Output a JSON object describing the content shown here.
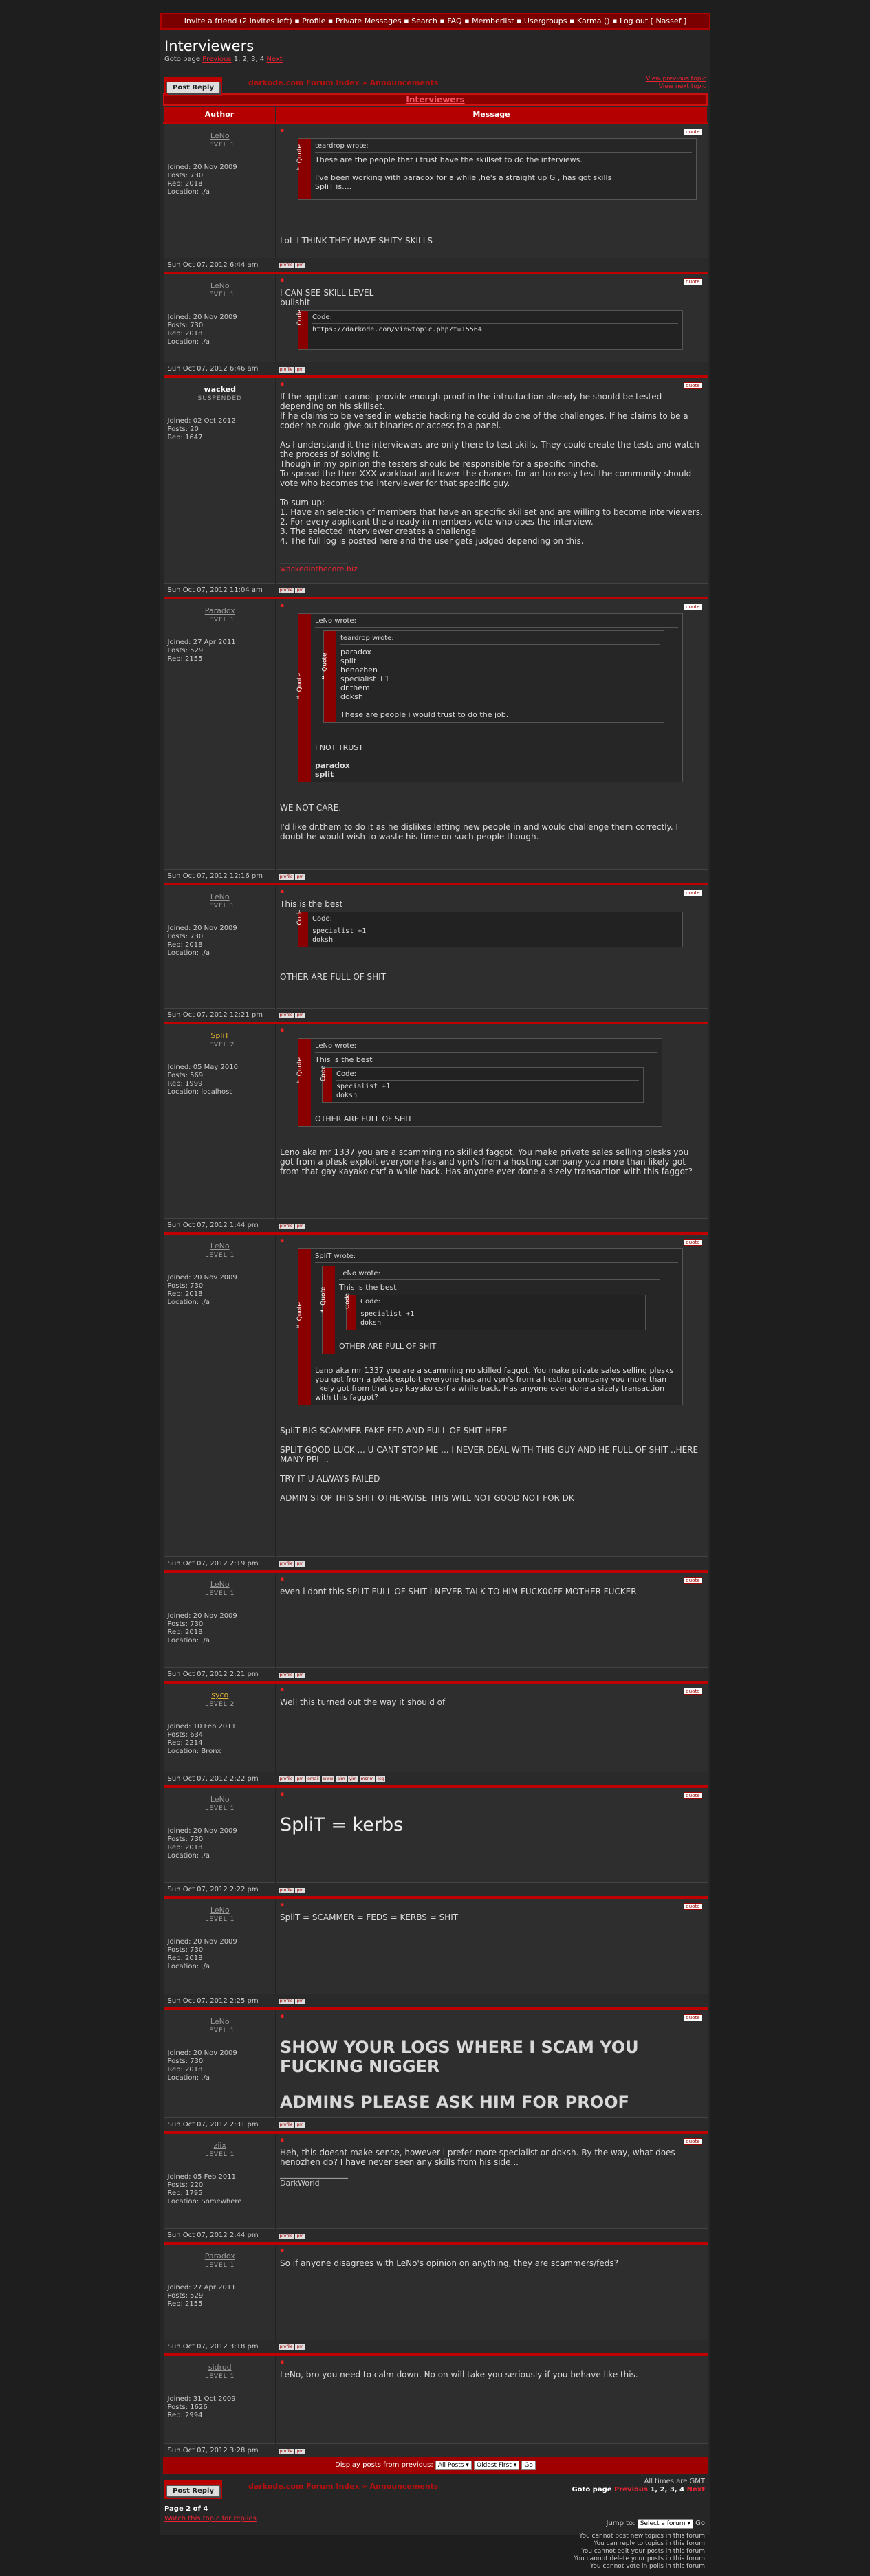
{
  "topbar": {
    "text": "Invite a friend (2 invites left) ▪ Profile ▪ Private Messages ▪ Search ▪ FAQ ▪ Memberlist ▪ Usergroups ▪ Karma () ▪ Log out [ Nassef ]"
  },
  "title": "Interviewers",
  "goto": {
    "label": "Goto page",
    "prev": "Previous",
    "pages": "1, 2, 3, 4",
    "next": "Next"
  },
  "nav": {
    "post_reply": "Post Reply",
    "crumb_index": "darkode.com Forum Index",
    "crumb_sep": "»",
    "crumb_forum": "Announcements",
    "view_prev": "View previous topic",
    "view_next": "View next topic"
  },
  "topic_bar": "Interviewers",
  "headers": {
    "author": "Author",
    "message": "Message"
  },
  "posts": [
    {
      "user": "LeNo",
      "cls": "gray",
      "level": "LEVEL 1",
      "joined": "Joined: 20 Nov 2009",
      "posts": "Posts: 730",
      "rep": "Rep: 2018",
      "location": "Location: ./a",
      "date": "Sun Oct 07, 2012 6:44 am",
      "quote_who": "teardrop wrote:",
      "quote_text": "These are the people that i trust have the skillset to do the interviews.",
      "quote_text2": "I've been working with paradox for a while ,he's a straight up G , has got skills",
      "quote_text3": "SpliT is....",
      "text": "LoL I THINK THEY HAVE SHITY SKILLS"
    },
    {
      "user": "LeNo",
      "cls": "gray",
      "level": "LEVEL 1",
      "joined": "Joined: 20 Nov 2009",
      "posts": "Posts: 730",
      "rep": "Rep: 2018",
      "location": "Location: ./a",
      "date": "Sun Oct 07, 2012 6:46 am",
      "line1": "I CAN SEE SKILL LEVEL",
      "line2": "bullshit",
      "code_head": "Code:",
      "code": "https://darkode.com/viewtopic.php?t=15564"
    },
    {
      "user": "wacked",
      "cls": "white",
      "level": "SUSPENDED",
      "joined": "Joined: 02 Oct 2012",
      "posts": "Posts: 20",
      "rep": "Rep: 1647",
      "location": "",
      "date": "Sun Oct 07, 2012 11:04 am",
      "p1": "If the applicant cannot provide enough proof in the intruduction already he should be tested - depending on his skillset.",
      "p2": "If he claims to be versed in webstie hacking he could do one of the challenges. If he claims to be a coder he could give out binaries or access to a panel.",
      "p3": "As I understand it the interviewers are only there to test skills. They could create the tests and watch the process of solving it.",
      "p4": "Though in my opinion the testers should be responsible for a specific ninche.",
      "p5": "To spread the then XXX workload and lower the chances for an too easy test the community should vote who becomes the interviewer for that specific guy.",
      "p6": "To sum up:",
      "p7": "1. Have an selection of members that have an specific skillset and are willing to become interviewers.",
      "p8": "2. For every applicant the already in members vote who does the interview.",
      "p9": "3. The selected interviewer creates a challenge",
      "p10": "4. The full log is posted here and the user gets judged depending on this.",
      "sig": "wackedinthecore.biz"
    },
    {
      "user": "Paradox",
      "cls": "gray",
      "level": "LEVEL 1",
      "joined": "Joined: 27 Apr 2011",
      "posts": "Posts: 529",
      "rep": "Rep: 2155",
      "location": "",
      "date": "Sun Oct 07, 2012 12:16 pm",
      "outer_who": "LeNo wrote:",
      "inner_who": "teardrop wrote:",
      "names": [
        "paradox",
        "split",
        "henozhen",
        "specialist +1",
        "dr.them",
        "doksh"
      ],
      "inner_text": "These are people i would trust to do the job.",
      "trust": "I NOT TRUST",
      "t1": "paradox",
      "t2": "split",
      "text1": "WE NOT CARE.",
      "text2": "I'd like dr.them to do it as he dislikes letting new people in and would challenge them correctly. I doubt he would wish to waste his time on such people though."
    },
    {
      "user": "LeNo",
      "cls": "gray",
      "level": "LEVEL 1",
      "joined": "Joined: 20 Nov 2009",
      "posts": "Posts: 730",
      "rep": "Rep: 2018",
      "location": "Location: ./a",
      "date": "Sun Oct 07, 2012 12:21 pm",
      "line1": "This is the best",
      "code_head": "Code:",
      "code1": "specialist +1",
      "code2": "doksh",
      "text": "OTHER ARE FULL OF SHIT"
    },
    {
      "user": "SpliT",
      "cls": "gold",
      "level": "LEVEL 2",
      "joined": "Joined: 05 May 2010",
      "posts": "Posts: 569",
      "rep": "Rep: 1999",
      "location": "Location: localhost",
      "date": "Sun Oct 07, 2012 1:44 pm",
      "quote_who": "LeNo wrote:",
      "qline": "This is the best",
      "code_head": "Code:",
      "code1": "specialist +1",
      "code2": "doksh",
      "qtail": "OTHER ARE FULL OF SHIT",
      "text": "Leno aka mr 1337 you are a scamming no skilled faggot. You make private sales selling plesks you got from a plesk exploit everyone has and vpn's from a hosting company you more than likely got from that gay kayako csrf a while back. Has anyone ever done a sizely transaction with this faggot?"
    },
    {
      "user": "LeNo",
      "cls": "gray",
      "level": "LEVEL 1",
      "joined": "Joined: 20 Nov 2009",
      "posts": "Posts: 730",
      "rep": "Rep: 2018",
      "location": "Location: ./a",
      "date": "Sun Oct 07, 2012 2:19 pm",
      "outer_who": "SpliT wrote:",
      "inner_who": "LeNo wrote:",
      "qline": "This is the best",
      "code_head": "Code:",
      "code1": "specialist +1",
      "code2": "doksh",
      "qtail": "OTHER ARE FULL OF SHIT",
      "qtext": "Leno aka mr 1337 you are a scamming no skilled faggot. You make private sales selling plesks you got from a plesk exploit everyone has and vpn's from a hosting company you more than likely got from that gay kayako csrf a while back. Has anyone ever done a sizely transaction with this faggot?",
      "l1": "SpliT BIG SCAMMER FAKE FED AND FULL OF SHIT HERE",
      "l2": "SPLIT GOOD LUCK ... U CANT STOP ME ... I NEVER DEAL WITH THIS GUY AND HE FULL OF SHIT ..HERE MANY PPL ..",
      "l3": "TRY IT U ALWAYS FAILED",
      "l4": "ADMIN STOP THIS SHIT OTHERWISE THIS WILL NOT GOOD NOT FOR DK"
    },
    {
      "user": "LeNo",
      "cls": "gray",
      "level": "LEVEL 1",
      "joined": "Joined: 20 Nov 2009",
      "posts": "Posts: 730",
      "rep": "Rep: 2018",
      "location": "Location: ./a",
      "date": "Sun Oct 07, 2012 2:21 pm",
      "text": "even i dont this SPLIT FULL OF SHIT I NEVER TALK TO HIM FUCK00FF MOTHER FUCKER"
    },
    {
      "user": "syco",
      "cls": "gold",
      "level": "LEVEL 2",
      "joined": "Joined: 10 Feb 2011",
      "posts": "Posts: 634",
      "rep": "Rep: 2214",
      "location": "Location: Bronx",
      "date": "Sun Oct 07, 2012 2:22 pm",
      "text": "Well this turned out the way it should of"
    },
    {
      "user": "LeNo",
      "cls": "gray",
      "level": "LEVEL 1",
      "joined": "Joined: 20 Nov 2009",
      "posts": "Posts: 730",
      "rep": "Rep: 2018",
      "location": "Location: ./a",
      "date": "Sun Oct 07, 2012 2:22 pm",
      "text": "SpliT = kerbs"
    },
    {
      "user": "LeNo",
      "cls": "gray",
      "level": "LEVEL 1",
      "joined": "Joined: 20 Nov 2009",
      "posts": "Posts: 730",
      "rep": "Rep: 2018",
      "location": "Location: ./a",
      "date": "Sun Oct 07, 2012 2:25 pm",
      "text": "SpliT = SCAMMER = FEDS = KERBS = SHIT"
    },
    {
      "user": "LeNo",
      "cls": "gray",
      "level": "LEVEL 1",
      "joined": "Joined: 20 Nov 2009",
      "posts": "Posts: 730",
      "rep": "Rep: 2018",
      "location": "Location: ./a",
      "date": "Sun Oct 07, 2012 2:31 pm",
      "s1": "SHOW YOUR LOGS WHERE I SCAM YOU FUCKING NIGGER",
      "s2": "ADMINS PLEASE ASK HIM FOR PROOF"
    },
    {
      "user": "ziix",
      "cls": "gray",
      "level": "LEVEL 1",
      "joined": "Joined: 05 Feb 2011",
      "posts": "Posts: 220",
      "rep": "Rep: 1795",
      "location": "Location: Somewhere",
      "date": "Sun Oct 07, 2012 2:44 pm",
      "text": "Heh, this doesnt make sense, however i prefer more specialist or doksh. By the way, what does henozhen do? I have never seen any skills from his side...",
      "sig": "DarkWorld"
    },
    {
      "user": "Paradox",
      "cls": "gray",
      "level": "LEVEL 1",
      "joined": "Joined: 27 Apr 2011",
      "posts": "Posts: 529",
      "rep": "Rep: 2155",
      "location": "",
      "date": "Sun Oct 07, 2012 3:18 pm",
      "text": "So if anyone disagrees with LeNo's opinion on anything, they are scammers/feds?"
    },
    {
      "user": "sidrod",
      "cls": "gray",
      "level": "LEVEL 1",
      "joined": "Joined: 31 Oct 2009",
      "posts": "Posts: 1626",
      "rep": "Rep: 2994",
      "location": "",
      "date": "Sun Oct 07, 2012 3:28 pm",
      "text": "LeNo, bro you need to calm down. No on will take you seriously if you behave like this."
    }
  ],
  "labels": {
    "quote": "Quote",
    "code": "Code",
    "quote_btn": "quote"
  },
  "footer": {
    "display_label": "Display posts from previous:",
    "all_posts": "All Posts ▾",
    "oldest": "Oldest First ▾",
    "go": "Go",
    "tz": "All times are GMT",
    "goto_label": "Goto page",
    "prev": "Previous",
    "pages": "1, 2, 3, 4",
    "next": "Next",
    "page_of": "Page 2 of 4",
    "watch": "Watch this topic for replies",
    "jump_label": "Jump to:",
    "jump_select": "Select a forum ▾",
    "jump_go": "Go",
    "perms": [
      "You cannot post new topics in this forum",
      "You can reply to topics in this forum",
      "You cannot edit your posts in this forum",
      "You cannot delete your posts in this forum",
      "You cannot vote in polls in this forum"
    ]
  }
}
